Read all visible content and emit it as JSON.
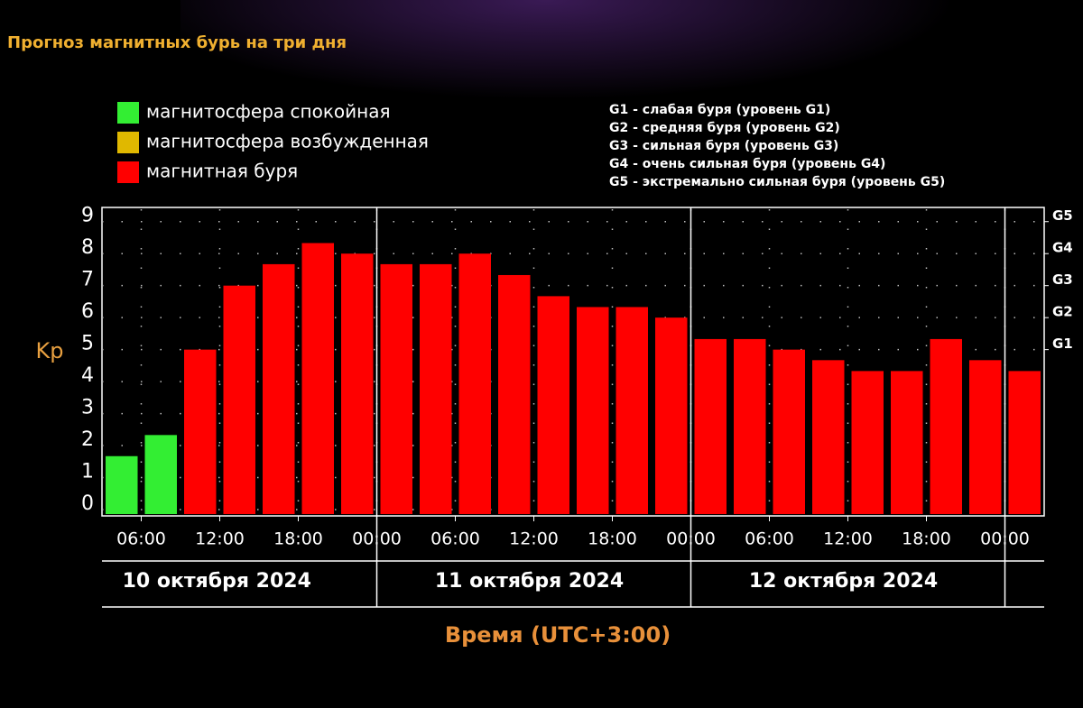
{
  "chart_data": {
    "type": "bar",
    "title": "Прогноз магнитных бурь на три дня",
    "legend": [
      {
        "name": "магнитосфера спокойная",
        "color": "#33ee33"
      },
      {
        "name": "магнитосфера возбужденная",
        "color": "#e0b800"
      },
      {
        "name": "магнитная буря",
        "color": "#ff0000"
      }
    ],
    "notes": [
      "G1 - слабая буря (уровень G1)",
      "G2 - средняя буря (уровень G2)",
      "G3 - сильная буря (уровень G3)",
      "G4 - очень сильная буря (уровень G4)",
      "G5 - экстремально сильная буря (уровень G5)"
    ],
    "ylabel": "Kp",
    "xlabel": "Время (UTC+3:00)",
    "ylim": [
      0,
      9.5
    ],
    "yticks": [
      0,
      1,
      2,
      3,
      4,
      5,
      6,
      7,
      8,
      9
    ],
    "y2ticks": [
      {
        "value": 5,
        "label": "G1"
      },
      {
        "value": 6,
        "label": "G2"
      },
      {
        "value": 7,
        "label": "G3"
      },
      {
        "value": 8,
        "label": "G4"
      },
      {
        "value": 9,
        "label": "G5"
      }
    ],
    "xtick_labels": [
      "06:00",
      "12:00",
      "18:00",
      "00:00",
      "06:00",
      "12:00",
      "18:00",
      "00:00",
      "06:00",
      "12:00",
      "18:00",
      "00:00"
    ],
    "days": [
      "10 октября 2024",
      "11 октября 2024",
      "12 октября 2024"
    ],
    "values": [
      1.67,
      2.33,
      5,
      7,
      7.67,
      8.33,
      8,
      7.67,
      7.67,
      8,
      7.33,
      6.67,
      6.33,
      6.33,
      6,
      5.33,
      5.33,
      5,
      4.67,
      4.33,
      4.33,
      5.33,
      4.67,
      4.33
    ],
    "colors": [
      "#33ee33",
      "#33ee33",
      "#ff0000",
      "#ff0000",
      "#ff0000",
      "#ff0000",
      "#ff0000",
      "#ff0000",
      "#ff0000",
      "#ff0000",
      "#ff0000",
      "#ff0000",
      "#ff0000",
      "#ff0000",
      "#ff0000",
      "#ff0000",
      "#ff0000",
      "#ff0000",
      "#ff0000",
      "#ff0000",
      "#ff0000",
      "#ff0000",
      "#ff0000",
      "#ff0000"
    ],
    "grid": true
  }
}
